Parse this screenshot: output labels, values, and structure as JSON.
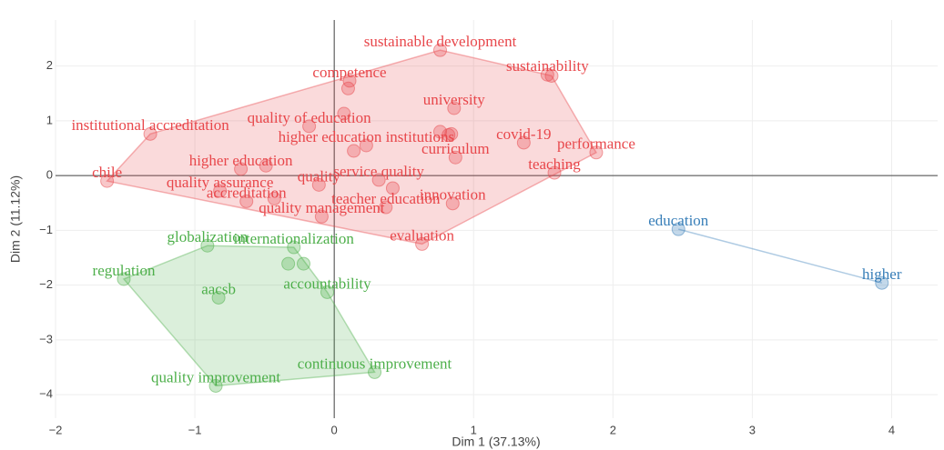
{
  "chart_data": {
    "type": "scatter",
    "xlabel": "Dim 1 (37.13%)",
    "ylabel": "Dim 2 (11.12%)",
    "xlim": [
      -2,
      4.33
    ],
    "ylim": [
      -4.43,
      2.84
    ],
    "xticks": [
      {
        "value": -2,
        "label": "−2"
      },
      {
        "value": -1,
        "label": "−1"
      },
      0,
      1,
      2,
      3,
      4
    ],
    "yticks": [
      {
        "value": -4,
        "label": "−4"
      },
      {
        "value": -3,
        "label": "−3"
      },
      {
        "value": -2,
        "label": "−2"
      },
      {
        "value": -1,
        "label": "−1"
      },
      0,
      1,
      2
    ],
    "grid": true,
    "zero_lines": true,
    "hulls": true,
    "series": [
      {
        "color": "#e8474b",
        "x": [
          0.76,
          1.53,
          1.56,
          0.11,
          0.1,
          -1.32,
          -0.18,
          0.86,
          1.36,
          1.88,
          1.58,
          0.87,
          0.23,
          -0.67,
          -0.49,
          -1.63,
          -0.82,
          -0.11,
          0.32,
          -0.63,
          -0.09,
          0.37,
          0.85,
          0.63,
          0.07,
          0.42,
          0.76,
          0.82,
          0.84,
          -0.43,
          0.14
        ],
        "y": [
          2.29,
          1.84,
          1.82,
          1.73,
          1.59,
          0.76,
          0.9,
          1.23,
          0.6,
          0.42,
          0.05,
          0.33,
          0.55,
          0.12,
          0.18,
          -0.1,
          -0.28,
          -0.17,
          -0.08,
          -0.47,
          -0.75,
          -0.58,
          -0.51,
          -1.25,
          1.13,
          -0.23,
          0.8,
          0.74,
          0.76,
          -0.42,
          0.45
        ],
        "labels": [
          "sustainable development",
          "sustainability",
          null,
          "competence",
          null,
          "institutional accreditation",
          "quality of education",
          "university",
          "covid-19",
          "performance",
          "teaching",
          "curriculum",
          "higher education institutions",
          "higher education",
          null,
          "chile",
          "quality assurance",
          "quality",
          "service quality",
          "accreditation",
          "quality management",
          "teacher education",
          "innovation",
          "evaluation",
          null,
          null,
          null,
          null,
          null,
          null,
          null
        ]
      },
      {
        "color": "#4daf4a",
        "x": [
          -0.91,
          -0.29,
          -0.33,
          -0.22,
          -1.51,
          -0.83,
          -0.05,
          0.29,
          -0.85
        ],
        "y": [
          -1.28,
          -1.31,
          -1.61,
          -1.61,
          -1.89,
          -2.23,
          -2.13,
          -3.59,
          -3.84
        ],
        "labels": [
          "globalization",
          "internationalization",
          null,
          null,
          "regulation",
          "aacsb",
          "accountability",
          "continuous improvement",
          "quality improvement"
        ]
      },
      {
        "color": "#377eb8",
        "x": [
          2.47,
          3.93
        ],
        "y": [
          -0.98,
          -1.96
        ],
        "labels": [
          "education",
          "higher"
        ]
      }
    ]
  }
}
